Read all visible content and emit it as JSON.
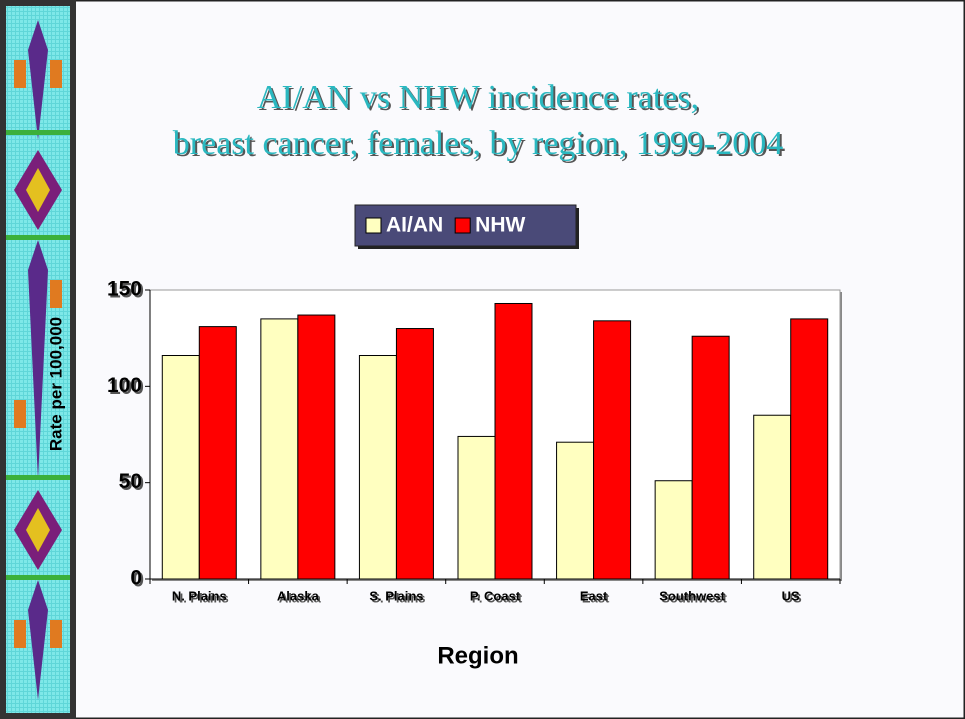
{
  "chart_data": {
    "type": "bar",
    "title": "AI/AN vs NHW incidence rates,",
    "subtitle": "breast cancer, females, by region, 1999-2004",
    "x_label": "Region",
    "y_label": "Rate per 100,000",
    "categories": [
      "N. Plains",
      "Alaska",
      "S. Plains",
      "P. Coast",
      "East",
      "Southwest",
      "US"
    ],
    "series": [
      {
        "name": "AI/AN",
        "color": "#ffffc0",
        "values": [
          116,
          135,
          116,
          74,
          71,
          51,
          85
        ]
      },
      {
        "name": "NHW",
        "color": "#ff0000",
        "values": [
          131,
          137,
          130,
          143,
          134,
          126,
          135
        ]
      }
    ],
    "ylim": [
      0,
      150
    ],
    "yticks": [
      0,
      50,
      100,
      150
    ],
    "grid": false,
    "legend": "top"
  }
}
